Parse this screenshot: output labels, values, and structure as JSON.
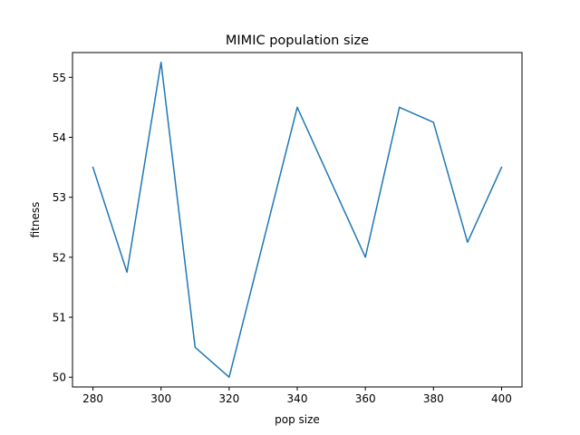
{
  "chart_data": {
    "type": "line",
    "title": "MIMIC population size",
    "xlabel": "pop size",
    "ylabel": "fitness",
    "x": [
      280,
      290,
      300,
      310,
      320,
      330,
      340,
      350,
      360,
      370,
      380,
      390,
      400
    ],
    "series": [
      {
        "values": [
          53.5,
          51.75,
          55.25,
          50.5,
          50.0,
          52.25,
          54.5,
          53.25,
          52.0,
          54.5,
          54.25,
          52.25,
          53.5
        ],
        "color": "#1f77b4"
      }
    ],
    "xlim": [
      274,
      406
    ],
    "ylim": [
      49.8375,
      55.4125
    ],
    "xticks": [
      280,
      300,
      320,
      340,
      360,
      380,
      400
    ],
    "xtick_labels": [
      "280",
      "300",
      "320",
      "340",
      "360",
      "380",
      "400"
    ],
    "yticks": [
      50,
      51,
      52,
      53,
      54,
      55
    ],
    "ytick_labels": [
      "50",
      "51",
      "52",
      "53",
      "54",
      "55"
    ],
    "grid": false,
    "legend": "none"
  }
}
